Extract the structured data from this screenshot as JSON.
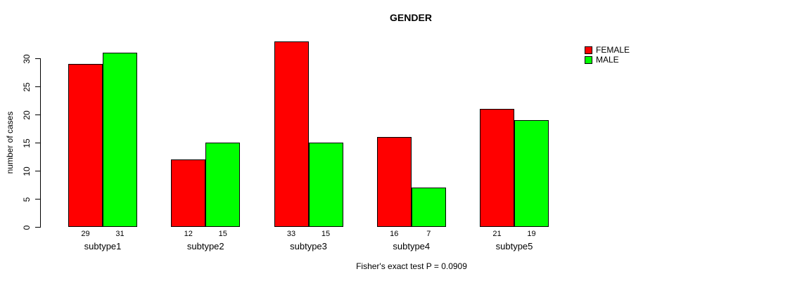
{
  "chart_data": {
    "type": "bar",
    "title": "GENDER",
    "xlabel": "",
    "ylabel": "number of cases",
    "categories": [
      "subtype1",
      "subtype2",
      "subtype3",
      "subtype4",
      "subtype5"
    ],
    "series": [
      {
        "name": "FEMALE",
        "color": "#ff0000",
        "values": [
          29,
          12,
          33,
          16,
          21
        ]
      },
      {
        "name": "MALE",
        "color": "#00ff00",
        "values": [
          31,
          15,
          15,
          7,
          19
        ]
      }
    ],
    "bar_value_labels": {
      "FEMALE": [
        "29",
        "12",
        "33",
        "16",
        "21"
      ],
      "MALE": [
        "31",
        "15",
        "15",
        "7",
        "19"
      ]
    },
    "ylim": [
      0,
      33
    ],
    "yticks": [
      "0",
      "5",
      "10",
      "15",
      "20",
      "25",
      "30"
    ],
    "grid": false,
    "legend_position": "top-right",
    "legend_entries": [
      "FEMALE",
      "MALE"
    ],
    "annotation": "Fisher's exact test P = 0.0909"
  }
}
